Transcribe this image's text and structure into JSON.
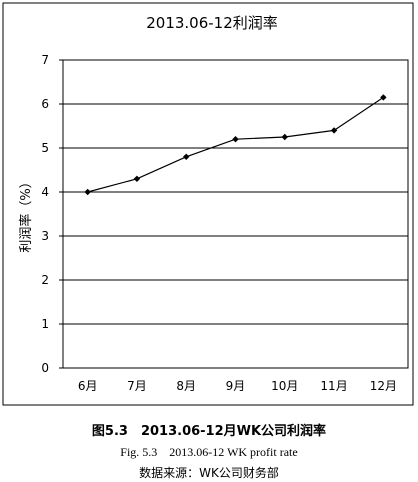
{
  "chart_data": {
    "type": "line",
    "title": "2013.06-12利润率",
    "xlabel": "",
    "ylabel": "利润率（%）",
    "categories": [
      "6月",
      "7月",
      "8月",
      "9月",
      "10月",
      "11月",
      "12月"
    ],
    "series": [
      {
        "values": [
          4.0,
          4.3,
          4.8,
          5.2,
          5.25,
          5.4,
          6.15
        ]
      }
    ],
    "ylim": [
      0,
      7
    ],
    "yticks": [
      0,
      1,
      2,
      3,
      4,
      5,
      6,
      7
    ],
    "grid": true,
    "line_color": "#000000",
    "marker": "diamond"
  },
  "figure": {
    "caption_cn": "图5.3　2013.06-12月WK公司利润率",
    "caption_en": "Fig. 5.3　2013.06-12 WK profit rate",
    "source": "数据来源：WK公司财务部"
  }
}
